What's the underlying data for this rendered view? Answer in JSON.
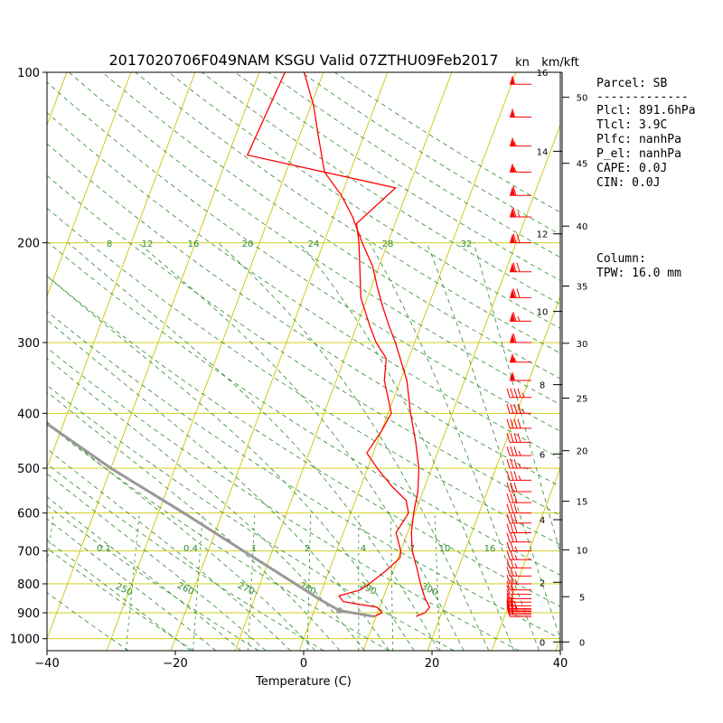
{
  "chart_data": {
    "type": "line",
    "title": "2017020706F049NAM KSGU Valid 07ZTHU09Feb2017",
    "xlabel": "Temperature (C)",
    "xlim": [
      -40,
      40
    ],
    "ylim_hpa": [
      1050,
      100
    ],
    "log_pressure_axis": true,
    "grid": true,
    "x_ticks": [
      -40,
      -20,
      0,
      20,
      40
    ],
    "y_ticks": [
      100,
      200,
      300,
      400,
      500,
      600,
      700,
      800,
      900,
      1000
    ],
    "height_axis": {
      "km_label": "km/kft",
      "kn_label": "kn",
      "km_ticks": [
        0,
        2,
        4,
        6,
        8,
        10,
        12,
        14,
        16
      ],
      "kft_ticks": [
        0,
        5,
        10,
        15,
        20,
        25,
        30,
        35,
        40,
        45,
        50
      ]
    },
    "isotherm_color": "#c8c800",
    "dry_adiabat_color": "#2e8b2e",
    "moist_adiabat_color": "#2e8b2e",
    "mixing_ratio_labels": [
      "0.1",
      "0.4",
      "1",
      "2",
      "4",
      "7",
      "10",
      "16"
    ],
    "mixing_ratio_values": [
      0.1,
      0.4,
      1,
      2,
      4,
      7,
      10,
      16
    ],
    "theta_e_labels": [
      "250",
      "260",
      "270",
      "280",
      "290",
      "300"
    ],
    "upper_labels": [
      "8",
      "12",
      "16",
      "20",
      "24",
      "28",
      "32"
    ],
    "series": [
      {
        "color": "#ff0000",
        "points": [
          [
            914,
            16.2
          ],
          [
            900,
            17.4
          ],
          [
            880,
            17.8
          ],
          [
            850,
            16.6
          ],
          [
            800,
            15.0
          ],
          [
            750,
            13.5
          ],
          [
            700,
            11.8
          ],
          [
            650,
            10.6
          ],
          [
            600,
            9.8
          ],
          [
            550,
            9.2
          ],
          [
            500,
            8.0
          ],
          [
            450,
            6.0
          ],
          [
            400,
            3.5
          ],
          [
            350,
            1.0
          ],
          [
            300,
            -3.0
          ],
          [
            280,
            -5.0
          ],
          [
            260,
            -7.0
          ],
          [
            240,
            -9.0
          ],
          [
            220,
            -11.0
          ],
          [
            200,
            -14.0
          ],
          [
            180,
            -17.0
          ],
          [
            165,
            -20.0
          ],
          [
            150,
            -24.0
          ],
          [
            130,
            -27.0
          ],
          [
            115,
            -29.5
          ],
          [
            100,
            -33.0
          ]
        ]
      },
      {
        "color": "#ff0000",
        "points": [
          [
            914,
            9.7
          ],
          [
            900,
            10.7
          ],
          [
            880,
            9.6
          ],
          [
            860,
            4.0
          ],
          [
            840,
            3.0
          ],
          [
            820,
            6.0
          ],
          [
            800,
            7.0
          ],
          [
            760,
            8.8
          ],
          [
            720,
            10.3
          ],
          [
            700,
            10.0
          ],
          [
            650,
            8.2
          ],
          [
            600,
            9.0
          ],
          [
            570,
            7.9
          ],
          [
            540,
            5.0
          ],
          [
            500,
            1.5
          ],
          [
            470,
            -1.0
          ],
          [
            430,
            0.0
          ],
          [
            400,
            0.5
          ],
          [
            350,
            -2.5
          ],
          [
            320,
            -3.5
          ],
          [
            300,
            -6.0
          ],
          [
            280,
            -8.0
          ],
          [
            250,
            -11.0
          ],
          [
            220,
            -13.0
          ],
          [
            200,
            -14.5
          ],
          [
            185,
            -16.0
          ],
          [
            160,
            -12.0
          ],
          [
            140,
            -37.0
          ],
          [
            100,
            -36.0
          ]
        ]
      },
      {
        "color": "#999999",
        "points": [
          [
            914,
            9.7
          ],
          [
            891.6,
            3.9
          ],
          [
            850,
            0.0
          ],
          [
            800,
            -4.5
          ],
          [
            700,
            -14.5
          ],
          [
            600,
            -26.0
          ],
          [
            500,
            -40.0
          ],
          [
            400,
            -55.5
          ],
          [
            300,
            -75.0
          ],
          [
            200,
            -97.0
          ],
          [
            100,
            -125.0
          ]
        ]
      }
    ],
    "wind_barbs_hpa": [
      914,
      907,
      901,
      895,
      890,
      885,
      875,
      862,
      850,
      835,
      820,
      800,
      775,
      750,
      725,
      700,
      675,
      650,
      625,
      600,
      575,
      550,
      525,
      500,
      475,
      450,
      425,
      400,
      375,
      350,
      325,
      300,
      275,
      250,
      225,
      200,
      180,
      165,
      150,
      135,
      120,
      105
    ],
    "wind_speeds_kn": [
      10,
      15,
      20,
      25,
      30,
      25,
      20,
      15,
      15,
      20,
      20,
      25,
      25,
      25,
      25,
      25,
      30,
      30,
      30,
      30,
      30,
      30,
      35,
      35,
      35,
      40,
      40,
      45,
      45,
      50,
      55,
      60,
      65,
      70,
      70,
      70,
      65,
      60,
      55,
      55,
      50,
      50
    ]
  },
  "parcel_panel": {
    "lines": [
      "Parcel: SB",
      "-------------",
      "Plcl: 891.6hPa",
      "Tlcl:   3.9C",
      "Plfc:   nanhPa",
      "P_el:   nanhPa",
      "CAPE:   0.0J",
      "CIN:    0.0J"
    ],
    "column_lines": [
      "Column:",
      " TPW:  16.0 mm"
    ]
  }
}
